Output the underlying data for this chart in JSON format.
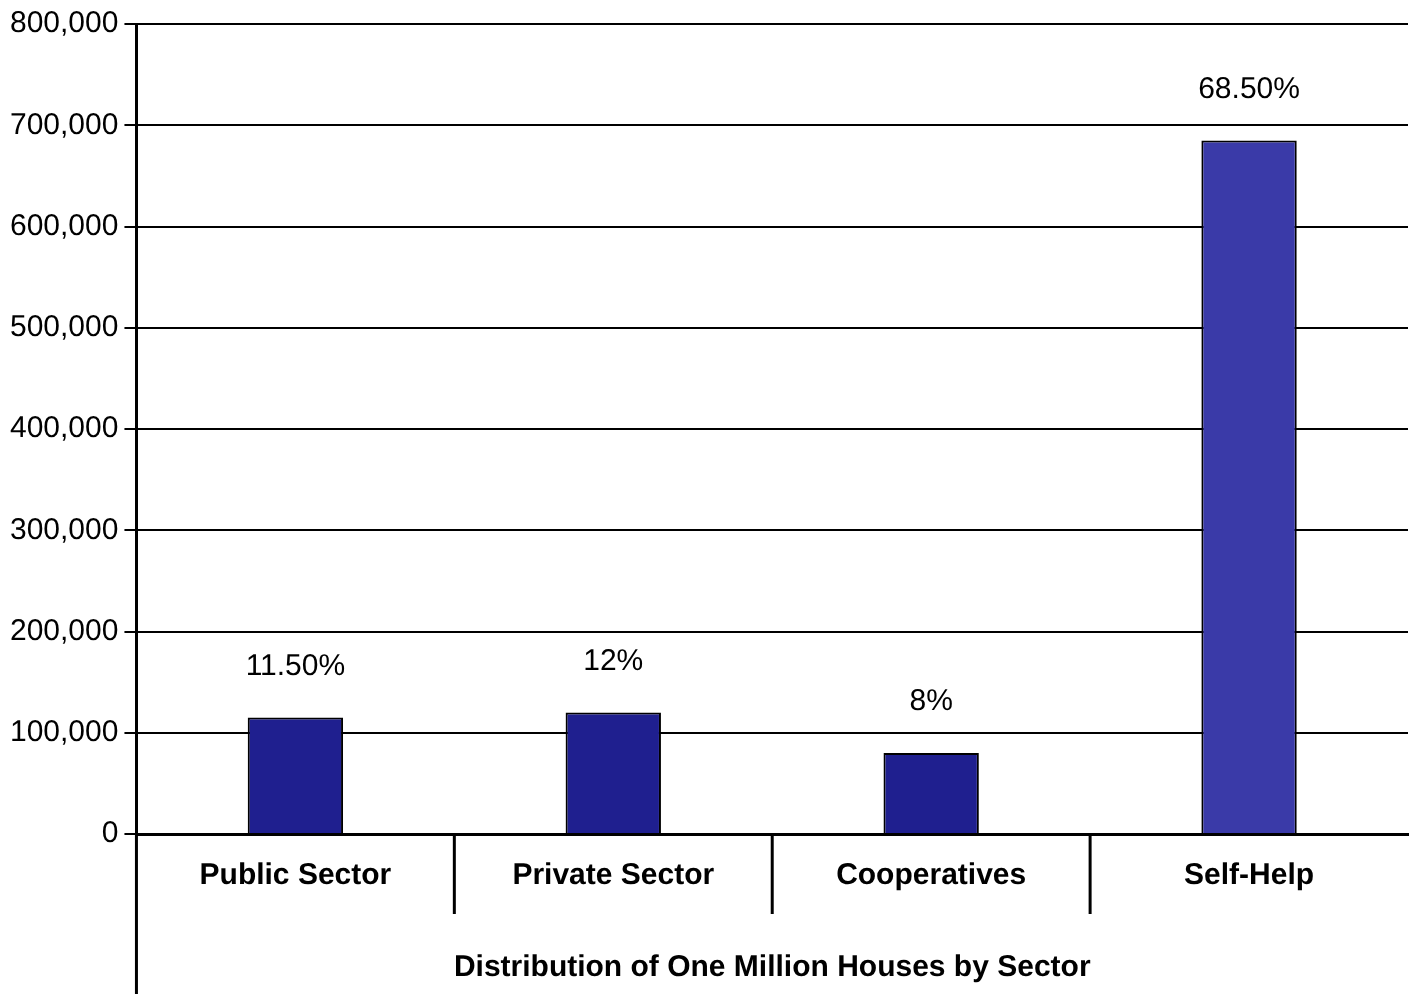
{
  "chart_data": {
    "type": "bar",
    "xlabel": "Distribution of One Million Houses by Sector",
    "categories": [
      "Public Sector",
      "Private Sector",
      "Cooperatives",
      "Self-Help"
    ],
    "values": [
      115000,
      120000,
      80000,
      685000
    ],
    "annotations": [
      {
        "text": "11.50%",
        "x": "Public Sector",
        "y": 115000
      },
      {
        "text": "12%",
        "x": "Private Sector",
        "y": 120000
      },
      {
        "text": "8%",
        "x": "Cooperatives",
        "y": 80000
      },
      {
        "text": "68.50%",
        "x": "Self-Help",
        "y": 685000
      }
    ],
    "colors": [
      "#1f1f8f",
      "#1f1f8f",
      "#1f1f8f",
      "#3a3aa8"
    ],
    "ylim": [
      0,
      800000
    ],
    "yticks": [
      0,
      {
        "value": 100000,
        "label": "100,000"
      },
      {
        "value": 200000,
        "label": "200,000"
      },
      {
        "value": 300000,
        "label": "300,000"
      },
      {
        "value": 400000,
        "label": "400,000"
      },
      {
        "value": 500000,
        "label": "500,000"
      },
      {
        "value": 600000,
        "label": "600,000"
      },
      {
        "value": 700000,
        "label": "700,000"
      },
      {
        "value": 800000,
        "label": "800,000"
      }
    ],
    "grid": "y",
    "legend": false
  }
}
